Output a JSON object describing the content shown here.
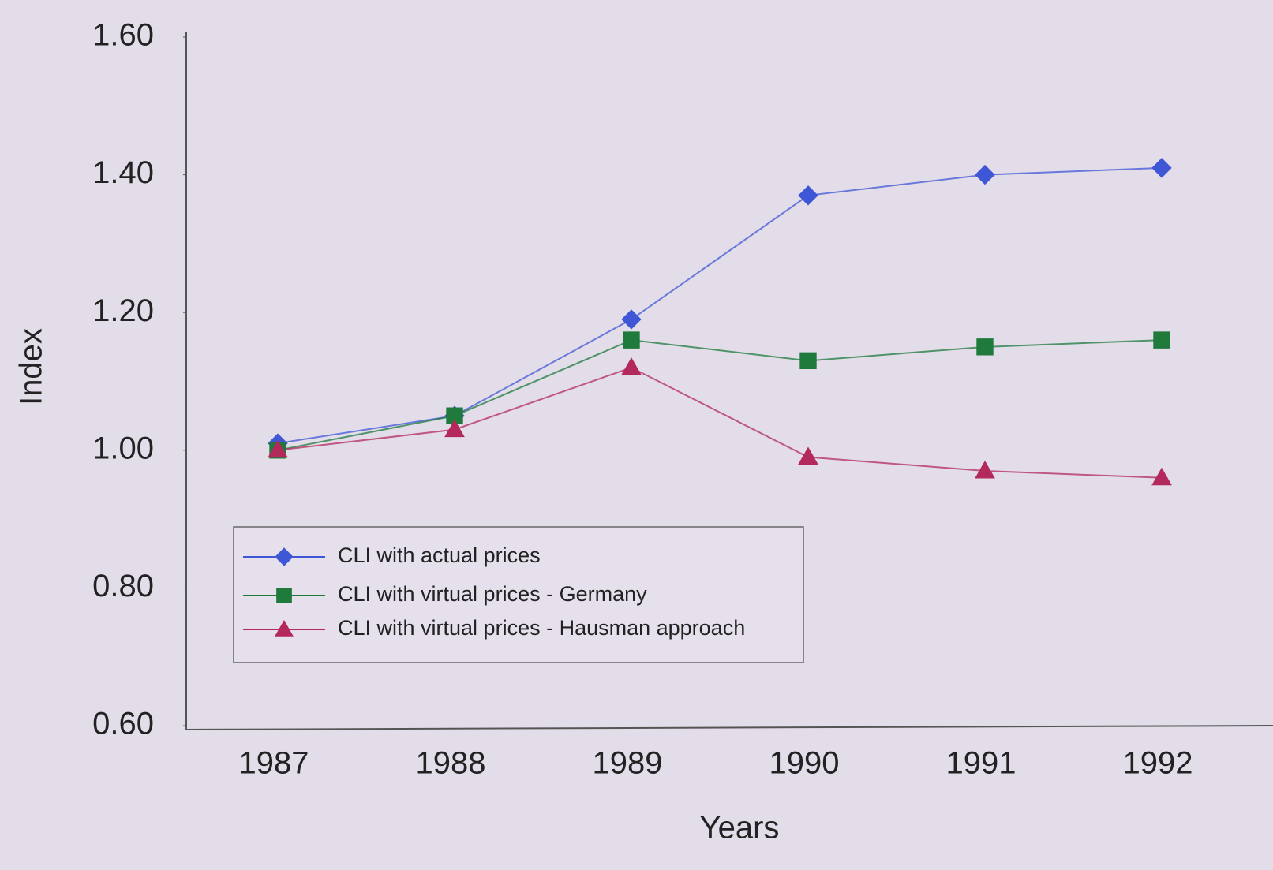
{
  "chart_data": {
    "type": "line",
    "x_label": "Years",
    "y_label": "Index",
    "categories": [
      "1987",
      "1988",
      "1989",
      "1990",
      "1991",
      "1992"
    ],
    "series": [
      {
        "name": "CLI with actual prices",
        "color": "#3f56d6",
        "marker": "diamond",
        "values": [
          1.01,
          1.05,
          1.19,
          1.37,
          1.4,
          1.41
        ]
      },
      {
        "name": "CLI with virtual prices - Germany",
        "color": "#1f7a3c",
        "marker": "square",
        "values": [
          1.0,
          1.05,
          1.16,
          1.13,
          1.15,
          1.16
        ]
      },
      {
        "name": "CLI with virtual prices - Hausman approach",
        "color": "#b3295c",
        "marker": "triangle",
        "values": [
          1.0,
          1.03,
          1.12,
          0.99,
          0.97,
          0.96
        ]
      }
    ],
    "ylim": [
      0.6,
      1.6
    ],
    "yticks": [
      {
        "value": 0.6,
        "label": "0.60"
      },
      {
        "value": 0.8,
        "label": "0.80"
      },
      {
        "value": 1.0,
        "label": "1.00"
      },
      {
        "value": 1.2,
        "label": "1.20"
      },
      {
        "value": 1.4,
        "label": "1.40"
      },
      {
        "value": 1.6,
        "label": "1.60"
      }
    ],
    "grid": false,
    "legend": "lower left"
  }
}
